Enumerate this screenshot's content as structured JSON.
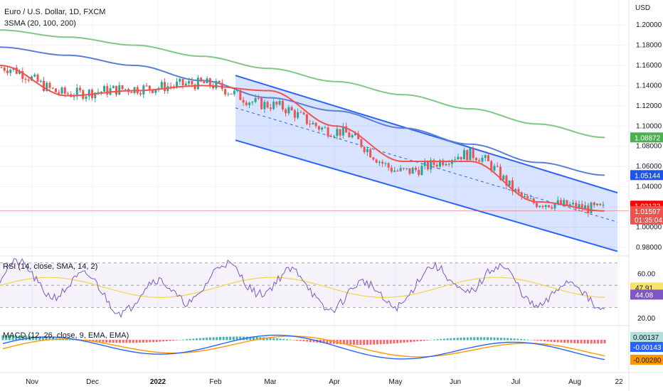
{
  "header": {
    "title": "Euro / U.S. Dollar, 1D, FXCM",
    "indicator": "3SMA (20, 100, 200)",
    "currency": "USD"
  },
  "colors": {
    "up": "#26a69a",
    "down": "#ef5350",
    "sma20": "#ef5350",
    "sma100": "#5b7fd6",
    "sma200": "#81c784",
    "channel": "#2962ff",
    "rsi": "#7e57c2",
    "rsi_ma": "#f2d64b",
    "macd": "#2962ff",
    "signal": "#ff9800"
  },
  "price_axis": {
    "ticks": [
      "1.20000",
      "1.18000",
      "1.16000",
      "1.14000",
      "1.12000",
      "1.10000",
      "1.08000",
      "1.06000",
      "1.04000",
      "1.02000",
      "1.00000",
      "0.98000"
    ],
    "badges": [
      {
        "text": "1.08872",
        "value": 1.08872,
        "bg": "#4caf50",
        "fg": "#ffffff"
      },
      {
        "text": "1.05144",
        "value": 1.05144,
        "bg": "#1e53e5",
        "fg": "#ffffff"
      },
      {
        "text": "1.02122",
        "value": 1.02122,
        "bg": "#ff0000",
        "fg": "#ffffff"
      },
      {
        "text": "1.01597",
        "value": 1.01597,
        "bg": "#ef5350",
        "fg": "#ffffff"
      },
      {
        "text": "01:35:04",
        "value": 1.0105,
        "bg": "#ef5350",
        "fg": "#ffffff"
      }
    ]
  },
  "rsi": {
    "label": "RSI (14, close, SMA, 14, 2)",
    "ticks": [
      "60.00",
      "20.00"
    ],
    "badges": [
      {
        "text": "47.91",
        "bg": "#f7e26b",
        "fg": "#131722"
      },
      {
        "text": "44.08",
        "bg": "#7e57c2",
        "fg": "#ffffff"
      }
    ]
  },
  "macd": {
    "label": "MACD (12, 26, close, 9, EMA, EMA)",
    "badges": [
      {
        "text": "0.00137",
        "bg": "#b2dfdb",
        "fg": "#131722"
      },
      {
        "text": "-0.00143",
        "bg": "#2962ff",
        "fg": "#ffffff"
      },
      {
        "text": "-0.00280",
        "bg": "#ff9800",
        "fg": "#131722"
      }
    ]
  },
  "time_axis": [
    "Nov",
    "Dec",
    "2022",
    "Feb",
    "Mar",
    "Apr",
    "May",
    "Jun",
    "Jul",
    "Aug",
    "22"
  ],
  "chart_data": {
    "type": "line",
    "title": "Euro / U.S. Dollar, 1D, FXCM",
    "x": [
      "Nov",
      "Dec",
      "2022",
      "Feb",
      "Mar",
      "Apr",
      "May",
      "Jun",
      "Jul",
      "Aug"
    ],
    "ylim": [
      0.975,
      1.205
    ],
    "series": [
      {
        "name": "close",
        "values": [
          1.158,
          1.132,
          1.137,
          1.142,
          1.121,
          1.095,
          1.055,
          1.072,
          1.024,
          1.018
        ]
      },
      {
        "name": "SMA 20",
        "values": [
          1.16,
          1.13,
          1.135,
          1.14,
          1.135,
          1.1,
          1.065,
          1.065,
          1.025,
          1.016
        ]
      },
      {
        "name": "SMA 100",
        "values": [
          1.178,
          1.17,
          1.16,
          1.145,
          1.128,
          1.115,
          1.098,
          1.082,
          1.064,
          1.0514
        ]
      },
      {
        "name": "SMA 200",
        "values": [
          1.195,
          1.188,
          1.18,
          1.169,
          1.157,
          1.144,
          1.131,
          1.117,
          1.102,
          1.0887
        ]
      }
    ],
    "rsi_range": [
      20,
      70
    ],
    "rsi_last": 44.08,
    "rsi_ma_last": 47.91,
    "macd_last": -0.00143,
    "signal_last": -0.0028,
    "hist_last": 0.00137,
    "legend": "top-left",
    "grid": true
  }
}
